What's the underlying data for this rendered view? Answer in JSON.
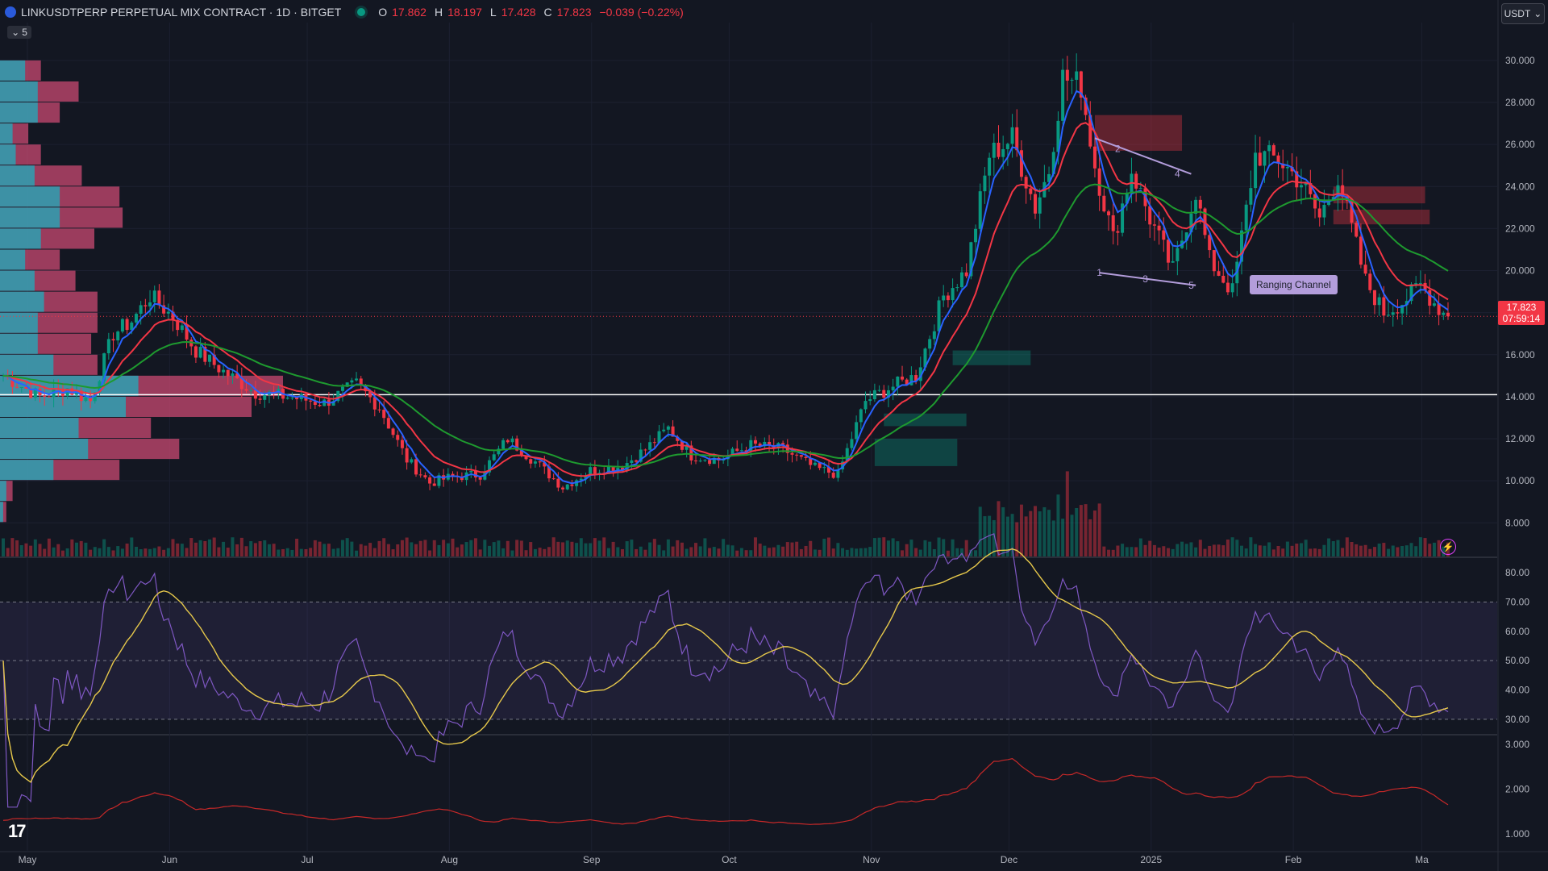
{
  "header": {
    "symbol": "LINKUSDTPERP PERPETUAL MIX CONTRACT · 1D · BITGET",
    "o_label": "O",
    "o_value": "17.862",
    "h_label": "H",
    "h_value": "18.197",
    "l_label": "L",
    "l_value": "17.428",
    "c_label": "C",
    "c_value": "17.823",
    "change": "−0.039 (−0.22%)"
  },
  "vp_toggle": {
    "label": "5",
    "icon": "chevron-down-icon"
  },
  "currency_button": {
    "label": "USDT",
    "icon": "chevron-down-icon"
  },
  "last_price": {
    "value": "17.823",
    "countdown": "07:59:14"
  },
  "annotation": {
    "label": "Ranging Channel",
    "points": [
      "1",
      "2",
      "3",
      "4",
      "5"
    ]
  },
  "colors": {
    "background": "#131722",
    "up": "#089981",
    "down": "#f23645",
    "ema_fast": "#2962ff",
    "ema_mid": "#f23645",
    "ema_slow": "#1e9a2f",
    "rsi": "#7e57c2",
    "rsi_ma": "#e6c84b",
    "third_pane": "#c62828",
    "vp_up": "#26a6b8",
    "vp_down": "#c94a72"
  },
  "chart_data": {
    "type": "candlestick",
    "price_axis_ticks": [
      "30.000",
      "28.000",
      "26.000",
      "24.000",
      "22.000",
      "20.000",
      "18.000",
      "16.000",
      "14.000",
      "12.000",
      "10.000",
      "8.000"
    ],
    "price_ylim": [
      6.4,
      31.8
    ],
    "horizontal_level": 14.1,
    "x_labels": [
      "May",
      "Jun",
      "Jul",
      "Aug",
      "Sep",
      "Oct",
      "Nov",
      "Dec",
      "2025",
      "Feb",
      "Ma"
    ],
    "rsi": {
      "ticks": [
        "80.00",
        "70.00",
        "60.00",
        "50.00",
        "40.00",
        "30.00"
      ],
      "ylim": [
        25,
        85
      ],
      "bands": [
        30,
        50,
        70
      ]
    },
    "third_pane": {
      "ticks": [
        "3.000",
        "2.000",
        "1.000"
      ],
      "ylim": [
        0.6,
        3.2
      ]
    },
    "price_anchors": [
      [
        0,
        15.0
      ],
      [
        8,
        14.0
      ],
      [
        14,
        14.4
      ],
      [
        19,
        13.8
      ],
      [
        24,
        17.0
      ],
      [
        28,
        17.6
      ],
      [
        32,
        18.8
      ],
      [
        37,
        17.8
      ],
      [
        42,
        16.2
      ],
      [
        48,
        15.2
      ],
      [
        55,
        14.2
      ],
      [
        62,
        14.0
      ],
      [
        70,
        13.7
      ],
      [
        77,
        14.6
      ],
      [
        82,
        13.5
      ],
      [
        88,
        11.0
      ],
      [
        93,
        9.9
      ],
      [
        98,
        10.2
      ],
      [
        104,
        10.3
      ],
      [
        110,
        12.0
      ],
      [
        116,
        10.9
      ],
      [
        122,
        9.7
      ],
      [
        128,
        10.5
      ],
      [
        135,
        10.7
      ],
      [
        140,
        11.5
      ],
      [
        145,
        12.5
      ],
      [
        150,
        11.2
      ],
      [
        156,
        11.0
      ],
      [
        163,
        11.7
      ],
      [
        170,
        11.5
      ],
      [
        177,
        10.6
      ],
      [
        182,
        10.3
      ],
      [
        188,
        13.8
      ],
      [
        193,
        14.4
      ],
      [
        199,
        15.0
      ],
      [
        205,
        18.8
      ],
      [
        210,
        20.0
      ],
      [
        215,
        25.5
      ],
      [
        220,
        26.3
      ],
      [
        225,
        23.0
      ],
      [
        228,
        24.8
      ],
      [
        231,
        29.2
      ],
      [
        235,
        28.8
      ],
      [
        238,
        25.0
      ],
      [
        242,
        21.5
      ],
      [
        246,
        24.8
      ],
      [
        250,
        22.5
      ],
      [
        255,
        20.0
      ],
      [
        260,
        23.8
      ],
      [
        263,
        20.5
      ],
      [
        268,
        19.0
      ],
      [
        273,
        25.5
      ],
      [
        278,
        25.3
      ],
      [
        283,
        24.2
      ],
      [
        287,
        22.5
      ],
      [
        291,
        24.5
      ],
      [
        294,
        22.0
      ],
      [
        297,
        19.5
      ],
      [
        301,
        18.0
      ],
      [
        305,
        18.5
      ],
      [
        309,
        19.3
      ],
      [
        313,
        18.2
      ],
      [
        315,
        17.823
      ]
    ],
    "volume_profile": [
      [
        29.5,
        0.08,
        0.13
      ],
      [
        28.5,
        0.12,
        0.25
      ],
      [
        27.5,
        0.12,
        0.19
      ],
      [
        26.5,
        0.04,
        0.09
      ],
      [
        25.5,
        0.05,
        0.13
      ],
      [
        24.5,
        0.11,
        0.26
      ],
      [
        23.5,
        0.19,
        0.38
      ],
      [
        22.5,
        0.19,
        0.39
      ],
      [
        21.5,
        0.13,
        0.3
      ],
      [
        20.5,
        0.08,
        0.19
      ],
      [
        19.5,
        0.11,
        0.24
      ],
      [
        18.5,
        0.14,
        0.31
      ],
      [
        17.5,
        0.12,
        0.31
      ],
      [
        16.5,
        0.12,
        0.29
      ],
      [
        15.5,
        0.17,
        0.31
      ],
      [
        14.5,
        0.44,
        0.9
      ],
      [
        13.5,
        0.4,
        0.8
      ],
      [
        12.5,
        0.25,
        0.48
      ],
      [
        11.5,
        0.28,
        0.57
      ],
      [
        10.5,
        0.17,
        0.38
      ],
      [
        9.5,
        0.02,
        0.04
      ],
      [
        8.5,
        0.01,
        0.02
      ]
    ]
  }
}
